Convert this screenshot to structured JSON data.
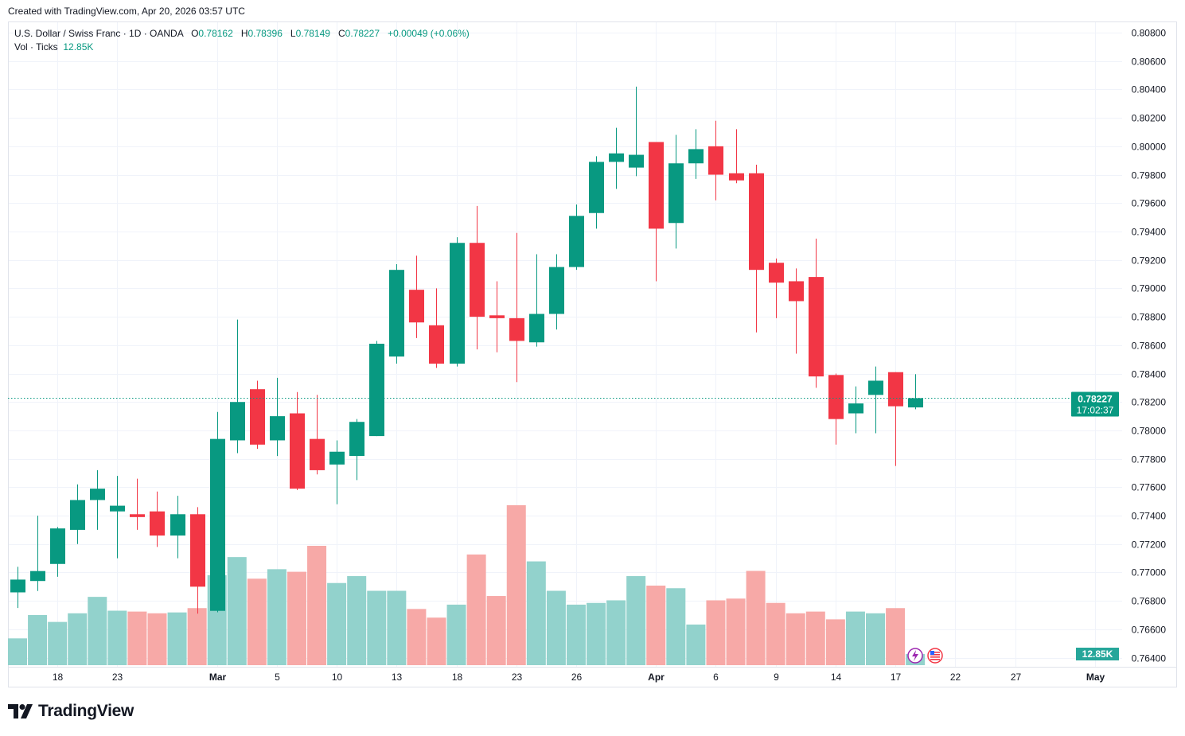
{
  "created_note": "Created with TradingView.com, Apr 20, 2026 03:57 UTC",
  "legend": {
    "symbol": "U.S. Dollar / Swiss Franc · 1D · OANDA",
    "o_label": "O",
    "o_value": "0.78162",
    "h_label": "H",
    "h_value": "0.78396",
    "l_label": "L",
    "l_value": "0.78149",
    "c_label": "C",
    "c_value": "0.78227",
    "change": "+0.00049 (+0.06%)",
    "vol_label": "Vol · Ticks",
    "vol_value": "12.85K"
  },
  "logo_text": "TradingView",
  "colors": {
    "up": "#089981",
    "down": "#f23645",
    "vol_up": "#92d2cc",
    "vol_down": "#f7a9a7",
    "grid": "#f0f3fa",
    "text": "#131722"
  },
  "chart_data": {
    "type": "candlestick",
    "symbol": "USDCHF",
    "interval": "1D",
    "ylim": [
      0.764,
      0.808
    ],
    "y_ticks": [
      "0.80800",
      "0.80600",
      "0.80400",
      "0.80200",
      "0.80000",
      "0.79800",
      "0.79600",
      "0.79400",
      "0.79200",
      "0.79000",
      "0.78800",
      "0.78600",
      "0.78400",
      "0.78200",
      "0.78000",
      "0.77800",
      "0.77600",
      "0.77400",
      "0.77200",
      "0.77000",
      "0.76800",
      "0.76600",
      "0.76400"
    ],
    "x_ticks": [
      {
        "label": "18",
        "date": "2026-02-18"
      },
      {
        "label": "23",
        "date": "2026-02-23"
      },
      {
        "label": "Mar",
        "date": "2026-03-02"
      },
      {
        "label": "5",
        "date": "2026-03-05"
      },
      {
        "label": "10",
        "date": "2026-03-10"
      },
      {
        "label": "13",
        "date": "2026-03-13"
      },
      {
        "label": "18",
        "date": "2026-03-18"
      },
      {
        "label": "23",
        "date": "2026-03-23"
      },
      {
        "label": "26",
        "date": "2026-03-26"
      },
      {
        "label": "Apr",
        "date": "2026-04-01"
      },
      {
        "label": "6",
        "date": "2026-04-06"
      },
      {
        "label": "9",
        "date": "2026-04-09"
      },
      {
        "label": "14",
        "date": "2026-04-14"
      },
      {
        "label": "17",
        "date": "2026-04-17"
      },
      {
        "label": "22",
        "date": "2026-04-22"
      },
      {
        "label": "27",
        "date": "2026-04-27"
      },
      {
        "label": "May",
        "date": "2026-05-01"
      }
    ],
    "grid": true,
    "last_price": {
      "value": "0.78227",
      "countdown": "17:02:37"
    },
    "last_volume_label": "12.85K",
    "volume_unit": "K ticks",
    "candles_columns": [
      "date",
      "open",
      "high",
      "low",
      "close",
      "volume"
    ],
    "candles": [
      [
        "2026-02-16",
        0.7686,
        0.7704,
        0.7675,
        0.7695,
        31
      ],
      [
        "2026-02-17",
        0.7694,
        0.774,
        0.7687,
        0.7701,
        58
      ],
      [
        "2026-02-18",
        0.7706,
        0.7732,
        0.7697,
        0.7731,
        50
      ],
      [
        "2026-02-19",
        0.773,
        0.7762,
        0.772,
        0.7751,
        60
      ],
      [
        "2026-02-20",
        0.7751,
        0.7772,
        0.773,
        0.7759,
        79
      ],
      [
        "2026-02-23",
        0.7743,
        0.7768,
        0.771,
        0.7747,
        63
      ],
      [
        "2026-02-24",
        0.7741,
        0.7766,
        0.773,
        0.7739,
        62
      ],
      [
        "2026-02-25",
        0.7743,
        0.7757,
        0.7718,
        0.7726,
        60
      ],
      [
        "2026-02-26",
        0.7726,
        0.7754,
        0.771,
        0.7741,
        61
      ],
      [
        "2026-02-27",
        0.7741,
        0.7746,
        0.7671,
        0.769,
        66
      ],
      [
        "2026-03-02",
        0.7673,
        0.7813,
        0.7672,
        0.7794,
        104
      ],
      [
        "2026-03-03",
        0.7793,
        0.7878,
        0.7784,
        0.782,
        125
      ],
      [
        "2026-03-04",
        0.7829,
        0.7835,
        0.7787,
        0.779,
        100
      ],
      [
        "2026-03-05",
        0.7793,
        0.7837,
        0.7782,
        0.781,
        111
      ],
      [
        "2026-03-06",
        0.7812,
        0.7827,
        0.7758,
        0.7759,
        108
      ],
      [
        "2026-03-09",
        0.7794,
        0.7825,
        0.7769,
        0.7772,
        138
      ],
      [
        "2026-03-10",
        0.7776,
        0.7793,
        0.7748,
        0.7785,
        95
      ],
      [
        "2026-03-11",
        0.7782,
        0.7808,
        0.7765,
        0.7806,
        103
      ],
      [
        "2026-03-12",
        0.7796,
        0.7863,
        0.7796,
        0.7861,
        86
      ],
      [
        "2026-03-13",
        0.7852,
        0.7917,
        0.7847,
        0.7913,
        86
      ],
      [
        "2026-03-16",
        0.7899,
        0.7923,
        0.7865,
        0.7876,
        65
      ],
      [
        "2026-03-17",
        0.7874,
        0.79,
        0.7844,
        0.7847,
        55
      ],
      [
        "2026-03-18",
        0.7847,
        0.7936,
        0.7845,
        0.7932,
        70
      ],
      [
        "2026-03-19",
        0.7932,
        0.7958,
        0.7857,
        0.788,
        128
      ],
      [
        "2026-03-20",
        0.7881,
        0.7905,
        0.7855,
        0.7879,
        80
      ],
      [
        "2026-03-23",
        0.7879,
        0.7939,
        0.7834,
        0.7863,
        185
      ],
      [
        "2026-03-24",
        0.7862,
        0.7924,
        0.7859,
        0.7882,
        120
      ],
      [
        "2026-03-25",
        0.7882,
        0.7924,
        0.7871,
        0.7915,
        86
      ],
      [
        "2026-03-26",
        0.7915,
        0.7959,
        0.7913,
        0.7951,
        70
      ],
      [
        "2026-03-27",
        0.7953,
        0.7993,
        0.7942,
        0.7989,
        72
      ],
      [
        "2026-03-30",
        0.7989,
        0.8013,
        0.797,
        0.7995,
        75
      ],
      [
        "2026-03-31",
        0.7985,
        0.8042,
        0.7979,
        0.7994,
        103
      ],
      [
        "2026-04-01",
        0.8003,
        0.8003,
        0.7905,
        0.7942,
        92
      ],
      [
        "2026-04-02",
        0.7946,
        0.8008,
        0.7928,
        0.7988,
        89
      ],
      [
        "2026-04-03",
        0.7988,
        0.8012,
        0.7977,
        0.7998,
        47
      ],
      [
        "2026-04-06",
        0.8,
        0.8018,
        0.7962,
        0.798,
        75
      ],
      [
        "2026-04-07",
        0.7981,
        0.8012,
        0.7974,
        0.7976,
        77
      ],
      [
        "2026-04-08",
        0.7981,
        0.7987,
        0.7869,
        0.7913,
        109
      ],
      [
        "2026-04-09",
        0.7918,
        0.7921,
        0.7879,
        0.7904,
        72
      ],
      [
        "2026-04-10",
        0.7905,
        0.7914,
        0.7854,
        0.7891,
        60
      ],
      [
        "2026-04-13",
        0.7908,
        0.7935,
        0.783,
        0.7838,
        62
      ],
      [
        "2026-04-14",
        0.7839,
        0.784,
        0.779,
        0.7808,
        53
      ],
      [
        "2026-04-15",
        0.7812,
        0.7831,
        0.7798,
        0.7819,
        62
      ],
      [
        "2026-04-16",
        0.7825,
        0.7845,
        0.7798,
        0.7835,
        60
      ],
      [
        "2026-04-17",
        0.7841,
        0.7841,
        0.7775,
        0.7817,
        66
      ],
      [
        "2026-04-20",
        0.78162,
        0.78396,
        0.78149,
        0.78227,
        12.85
      ]
    ]
  }
}
